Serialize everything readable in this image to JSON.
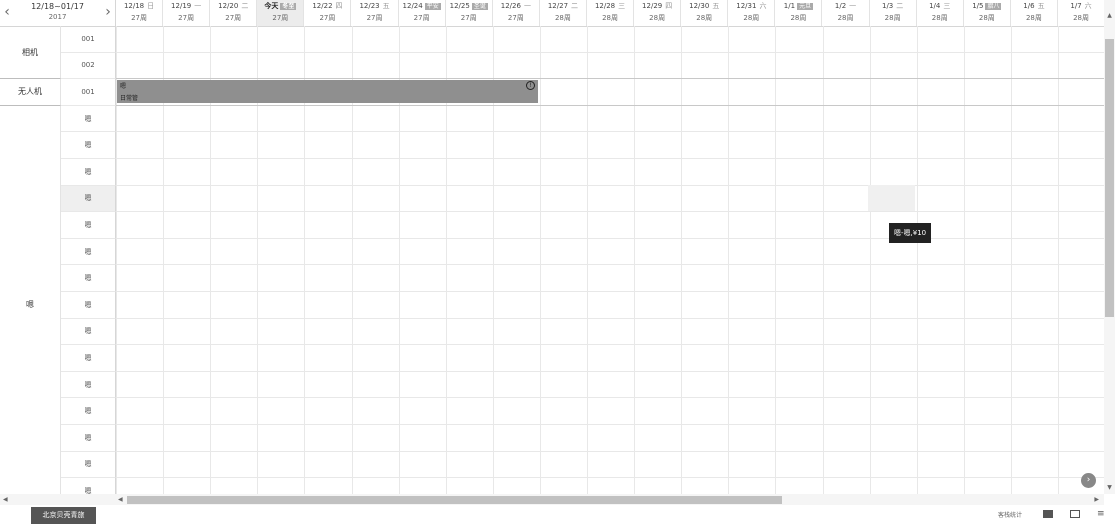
{
  "header": {
    "range": "12/18~01/17",
    "year": "2017",
    "days": [
      {
        "date": "12/18",
        "weekday": "日",
        "week": "27周"
      },
      {
        "date": "12/19",
        "weekday": "一",
        "week": "27周"
      },
      {
        "date": "12/20",
        "weekday": "二",
        "week": "27周"
      },
      {
        "date": "今天",
        "weekday": "",
        "tag": "冬至",
        "week": "27周",
        "today": true
      },
      {
        "date": "12/22",
        "weekday": "四",
        "week": "27周"
      },
      {
        "date": "12/23",
        "weekday": "五",
        "week": "27周"
      },
      {
        "date": "12/24",
        "weekday": "",
        "tag": "平安",
        "week": "27周"
      },
      {
        "date": "12/25",
        "weekday": "",
        "tag": "圣诞",
        "week": "27周"
      },
      {
        "date": "12/26",
        "weekday": "一",
        "week": "27周"
      },
      {
        "date": "12/27",
        "weekday": "二",
        "week": "28周"
      },
      {
        "date": "12/28",
        "weekday": "三",
        "week": "28周"
      },
      {
        "date": "12/29",
        "weekday": "四",
        "week": "28周"
      },
      {
        "date": "12/30",
        "weekday": "五",
        "week": "28周"
      },
      {
        "date": "12/31",
        "weekday": "六",
        "week": "28周"
      },
      {
        "date": "1/1",
        "weekday": "",
        "tag": "元旦",
        "week": "28周"
      },
      {
        "date": "1/2",
        "weekday": "一",
        "week": "28周"
      },
      {
        "date": "1/3",
        "weekday": "二",
        "week": "28周"
      },
      {
        "date": "1/4",
        "weekday": "三",
        "week": "28周"
      },
      {
        "date": "1/5",
        "weekday": "",
        "tag": "腊八",
        "week": "28周"
      },
      {
        "date": "1/6",
        "weekday": "五",
        "week": "28周"
      },
      {
        "date": "1/7",
        "weekday": "六",
        "week": "28周"
      }
    ]
  },
  "groups": [
    {
      "name": "相机",
      "units": [
        "001",
        "002"
      ]
    },
    {
      "name": "无人机",
      "units": [
        "001"
      ]
    },
    {
      "name": "嗯",
      "units": [
        "嗯",
        "嗯",
        "嗯",
        "嗯",
        "嗯",
        "嗯",
        "嗯",
        "嗯",
        "嗯",
        "嗯",
        "嗯",
        "嗯",
        "嗯",
        "嗯",
        "嗯"
      ]
    }
  ],
  "booking": {
    "line1": "嗯",
    "line2": "日常管",
    "alert": "!"
  },
  "tooltip": "嗯-嗯,¥10",
  "footer": {
    "store": "北京贝壳青旅",
    "stat": "客栈统计"
  },
  "icons": {
    "prev": "chevron-left-icon",
    "next": "chevron-right-icon",
    "fab": "chevron-right-circle-icon",
    "screen": "screen-icon",
    "mail": "mail-icon",
    "list": "list-icon"
  }
}
